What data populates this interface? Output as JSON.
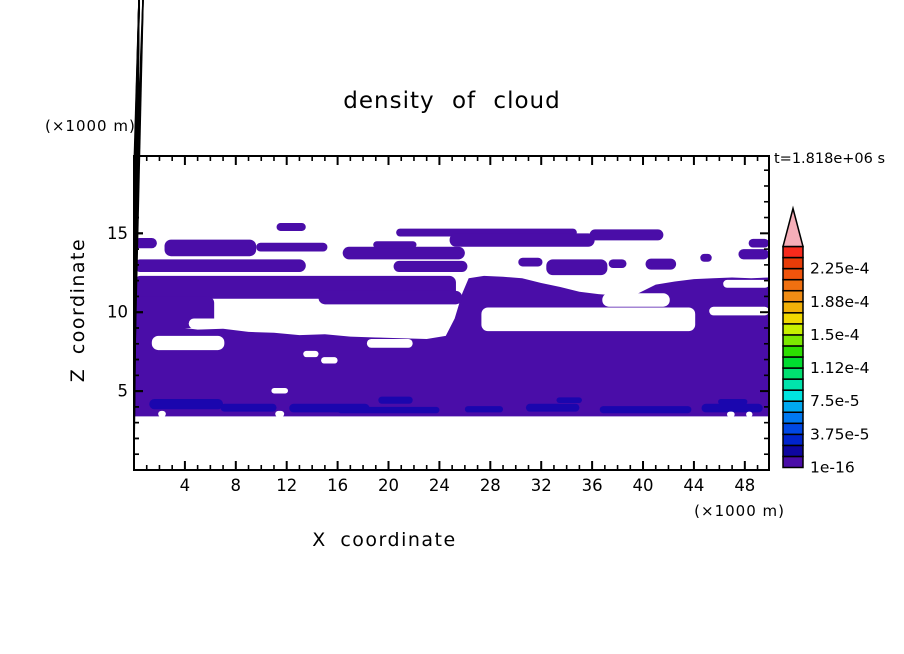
{
  "window": {
    "title": "density of cloud"
  },
  "chart_data": {
    "type": "filled_contour",
    "title": "density of cloud",
    "timestamp_label": "t=1.818e+06 s",
    "x_axis": {
      "label": "X coordinate",
      "unit": "(×1000 m)",
      "min": 0,
      "max": 49.9,
      "major_ticks": [
        4,
        8,
        12,
        16,
        20,
        24,
        28,
        32,
        36,
        40,
        44,
        48
      ],
      "minor_step": 1
    },
    "z_axis": {
      "label": "Z coordinate",
      "unit": "(×1000 m)",
      "min": 0,
      "max": 19.9,
      "major_ticks": [
        5,
        10,
        15
      ],
      "minor_step": 1
    },
    "grid": false,
    "legend_position": "right-colorbar",
    "colorbar": {
      "cell_colors_bottom_to_top": [
        "#4A0DA8",
        "#0E06A0",
        "#0024CC",
        "#0048E4",
        "#0078F0",
        "#00A8F0",
        "#00E4E0",
        "#00E4AC",
        "#00E070",
        "#00DC30",
        "#2CDE00",
        "#7CE800",
        "#C8F000",
        "#F0D800",
        "#F0B008",
        "#F08C14",
        "#F07010",
        "#F0540C",
        "#E83C08",
        "#F82A1C"
      ],
      "overflow_color": "#F5AEB8",
      "labels": [
        {
          "text": "1e-16",
          "boundary": 0
        },
        {
          "text": "3.75e-5",
          "boundary": 3
        },
        {
          "text": "7.5e-5",
          "boundary": 6
        },
        {
          "text": "1.12e-4",
          "boundary": 9
        },
        {
          "text": "1.5e-4",
          "boundary": 12
        },
        {
          "text": "1.88e-4",
          "boundary": 15
        },
        {
          "text": "2.25e-4",
          "boundary": 18
        }
      ]
    },
    "field_colors": {
      "level1": "#4A0DA8",
      "level2": "#1A06AE",
      "background": "#FFFFFF"
    },
    "regions": {
      "base_bottom_z": 3.4,
      "base_top_edge": [
        [
          0,
          9.2
        ],
        [
          3,
          9.1
        ],
        [
          5,
          8.9
        ],
        [
          7,
          8.95
        ],
        [
          9,
          8.75
        ],
        [
          11,
          8.7
        ],
        [
          13,
          8.55
        ],
        [
          15,
          8.6
        ],
        [
          17,
          8.45
        ],
        [
          19,
          8.4
        ],
        [
          21,
          8.35
        ],
        [
          23,
          8.3
        ],
        [
          24.5,
          8.5
        ],
        [
          25.2,
          9.6
        ],
        [
          25.8,
          11.2
        ],
        [
          26.3,
          12.15
        ],
        [
          27.5,
          12.3
        ],
        [
          29,
          12.25
        ],
        [
          30.5,
          12.15
        ],
        [
          32,
          11.85
        ],
        [
          33.5,
          11.6
        ],
        [
          35,
          11.3
        ],
        [
          36.5,
          11.15
        ],
        [
          38,
          11.05
        ],
        [
          39.5,
          11.15
        ],
        [
          41,
          11.75
        ],
        [
          42.5,
          11.95
        ],
        [
          44,
          12.1
        ],
        [
          45.5,
          12.15
        ],
        [
          47,
          12.2
        ],
        [
          48.5,
          12.15
        ],
        [
          49.9,
          12.2
        ]
      ],
      "level1_blobs": [
        [
          0,
          10.85,
          25.3,
          1.45
        ],
        [
          0,
          9.0,
          6.3,
          2.0
        ],
        [
          0,
          12.55,
          13.5,
          0.8
        ],
        [
          2.4,
          13.55,
          7.2,
          1.05
        ],
        [
          9.6,
          13.85,
          5.6,
          0.55
        ],
        [
          0,
          14.05,
          1.8,
          0.65
        ],
        [
          11.2,
          15.15,
          2.3,
          0.5
        ],
        [
          16.4,
          13.35,
          9.6,
          0.8
        ],
        [
          18.8,
          14.05,
          3.4,
          0.45
        ],
        [
          20.4,
          12.55,
          5.8,
          0.7
        ],
        [
          14.5,
          10.5,
          11.3,
          0.85
        ],
        [
          20.6,
          14.8,
          14.2,
          0.5
        ],
        [
          24.8,
          14.15,
          11.4,
          0.85
        ],
        [
          35.8,
          14.55,
          5.8,
          0.7
        ],
        [
          30.2,
          12.9,
          1.9,
          0.55
        ],
        [
          32.4,
          12.35,
          4.8,
          1.0
        ],
        [
          37.3,
          12.8,
          1.4,
          0.55
        ],
        [
          40.2,
          12.7,
          2.4,
          0.7
        ],
        [
          44.5,
          13.2,
          0.9,
          0.5
        ],
        [
          47.5,
          13.35,
          2.4,
          0.65
        ],
        [
          48.3,
          14.1,
          1.6,
          0.55
        ]
      ],
      "level2_patches": [
        [
          1.2,
          3.85,
          5.8,
          0.65
        ],
        [
          6.8,
          3.7,
          4.4,
          0.5
        ],
        [
          12.2,
          3.65,
          6.3,
          0.55
        ],
        [
          16.0,
          3.6,
          8.0,
          0.4
        ],
        [
          19.2,
          4.2,
          2.7,
          0.45
        ],
        [
          26.0,
          3.65,
          3.0,
          0.4
        ],
        [
          30.8,
          3.7,
          4.2,
          0.5
        ],
        [
          33.2,
          4.25,
          2.0,
          0.35
        ],
        [
          36.6,
          3.6,
          7.2,
          0.45
        ],
        [
          44.6,
          3.65,
          4.8,
          0.55
        ],
        [
          45.9,
          4.15,
          2.3,
          0.35
        ]
      ],
      "white_holes": [
        [
          1.4,
          7.6,
          5.7,
          0.9
        ],
        [
          4.3,
          8.95,
          2.5,
          0.65
        ],
        [
          13.3,
          7.15,
          1.2,
          0.4
        ],
        [
          14.7,
          6.75,
          1.3,
          0.4
        ],
        [
          18.3,
          7.75,
          3.6,
          0.55
        ],
        [
          10.8,
          4.85,
          1.3,
          0.35
        ],
        [
          27.3,
          8.8,
          16.8,
          1.5
        ],
        [
          36.8,
          10.35,
          5.3,
          0.85
        ],
        [
          45.2,
          9.8,
          4.7,
          0.55
        ],
        [
          46.3,
          11.55,
          3.6,
          0.5
        ],
        [
          38.5,
          11.95,
          0.8,
          0.55
        ],
        [
          1.9,
          3.35,
          0.6,
          0.4
        ],
        [
          11.1,
          3.35,
          0.7,
          0.4
        ],
        [
          46.6,
          3.35,
          0.6,
          0.35
        ],
        [
          48.1,
          3.35,
          0.5,
          0.35
        ]
      ]
    }
  }
}
